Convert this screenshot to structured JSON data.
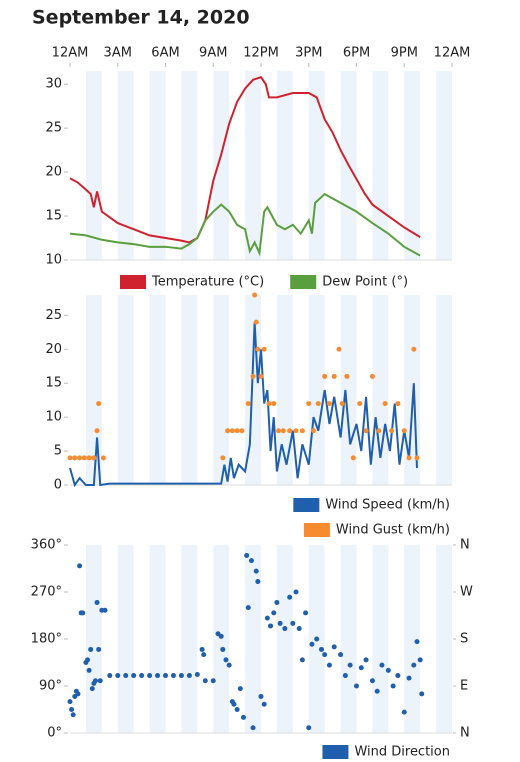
{
  "title": "September 14, 2020",
  "chart_data": [
    {
      "type": "line",
      "xlim": [
        0,
        24
      ],
      "xticks": [
        {
          "value": 0,
          "label": "12AM"
        },
        {
          "value": 3,
          "label": "3AM"
        },
        {
          "value": 6,
          "label": "6AM"
        },
        {
          "value": 9,
          "label": "9AM"
        },
        {
          "value": 12,
          "label": "12PM"
        },
        {
          "value": 15,
          "label": "3PM"
        },
        {
          "value": 18,
          "label": "6PM"
        },
        {
          "value": 21,
          "label": "9PM"
        },
        {
          "value": 24,
          "label": "12AM"
        }
      ],
      "ylim": [
        10,
        31.5
      ],
      "yticks": [
        10,
        15,
        20,
        25,
        30
      ],
      "series": [
        {
          "name": "Temperature (°C)",
          "color": "#d0212e",
          "x": [
            0,
            0.5,
            1,
            1.3,
            1.5,
            1.7,
            2,
            3,
            4,
            5,
            6,
            7,
            7.5,
            8,
            8.5,
            9,
            9.5,
            10,
            10.5,
            11,
            11.5,
            12,
            12.3,
            12.5,
            13,
            14,
            15,
            15.5,
            16,
            16.5,
            17,
            17.5,
            18,
            18.5,
            19,
            20,
            21,
            22
          ],
          "values": [
            19.3,
            18.8,
            18,
            17.5,
            16,
            17.8,
            15.5,
            14.2,
            13.5,
            12.8,
            12.5,
            12.2,
            12,
            12.5,
            14.5,
            19,
            22,
            25.5,
            28,
            29.5,
            30.5,
            30.8,
            30,
            28.5,
            28.5,
            29,
            29,
            28.5,
            26,
            24.5,
            22.5,
            20.8,
            19.2,
            17.6,
            16.3,
            15,
            13.7,
            12.6
          ]
        },
        {
          "name": "Dew Point (°)",
          "color": "#5a9f3f",
          "x": [
            0,
            1,
            2,
            3,
            4,
            5,
            6,
            7,
            7.5,
            8,
            8.5,
            9,
            9.5,
            10,
            10.5,
            11,
            11.3,
            11.6,
            11.9,
            12.2,
            12.4,
            13,
            13.5,
            14,
            14.5,
            15,
            15.2,
            15.4,
            16,
            17,
            18,
            19,
            20,
            21,
            22
          ],
          "values": [
            13,
            12.8,
            12.3,
            12,
            11.8,
            11.5,
            11.5,
            11.3,
            11.8,
            12.5,
            14.5,
            15.5,
            16.3,
            15.5,
            14,
            13.5,
            11,
            12,
            10.8,
            15.5,
            16,
            14,
            13.5,
            14,
            13,
            14.5,
            13,
            16.5,
            17.5,
            16.5,
            15.5,
            14.2,
            13,
            11.5,
            10.5
          ]
        }
      ]
    },
    {
      "type": "line",
      "xlim": [
        0,
        24
      ],
      "ylim": [
        0,
        28
      ],
      "yticks": [
        0,
        5,
        10,
        15,
        20,
        25
      ],
      "series": [
        {
          "name": "Wind Speed (km/h)",
          "color": "#1f5fae",
          "type": "line",
          "x": [
            0,
            0.3,
            0.6,
            1,
            1.5,
            1.7,
            1.9,
            2.5,
            4,
            6,
            8,
            9.5,
            9.7,
            9.9,
            10.1,
            10.3,
            10.6,
            11,
            11.3,
            11.6,
            11.8,
            12,
            12.2,
            12.4,
            12.6,
            12.8,
            13,
            13.3,
            13.6,
            14,
            14.3,
            14.6,
            15,
            15.3,
            15.6,
            16,
            16.3,
            16.6,
            17,
            17.3,
            17.6,
            18,
            18.3,
            18.6,
            18.9,
            19.2,
            19.5,
            19.8,
            20.1,
            20.4,
            20.7,
            21,
            21.3,
            21.6,
            21.8
          ],
          "values": [
            2.5,
            0,
            1,
            0,
            0,
            7,
            0,
            0.2,
            0.2,
            0.2,
            0.2,
            0.2,
            3,
            0.5,
            4,
            1,
            3,
            2,
            6,
            24,
            15,
            20,
            12,
            14,
            5,
            10,
            2,
            6,
            3,
            8,
            1,
            6,
            3,
            10,
            8,
            14,
            9,
            13,
            7,
            14,
            6,
            9,
            5,
            13,
            3,
            10,
            4,
            9,
            5,
            12,
            3,
            8,
            4,
            15,
            2.5
          ]
        },
        {
          "name": "Wind Gust (km/h)",
          "color": "#f78b2f",
          "type": "scatter",
          "x": [
            0,
            0.3,
            0.6,
            0.9,
            1.2,
            1.5,
            1.7,
            1.8,
            2.1,
            9.6,
            9.9,
            10.2,
            10.5,
            10.8,
            11.2,
            11.5,
            11.6,
            11.7,
            11.8,
            12.0,
            12.2,
            12.5,
            12.8,
            13.1,
            13.4,
            13.8,
            14.2,
            14.6,
            15,
            15.3,
            15.6,
            16,
            16.3,
            16.6,
            16.9,
            17.1,
            17.4,
            17.8,
            18.2,
            18.6,
            19,
            19.4,
            19.8,
            20.2,
            20.6,
            21,
            21.3,
            21.6,
            21.8
          ],
          "values": [
            4,
            4,
            4,
            4,
            4,
            4,
            8,
            12,
            4,
            4,
            8,
            8,
            8,
            8,
            12,
            16,
            28,
            24,
            20,
            16,
            20,
            12,
            12,
            8,
            8,
            8,
            8,
            8,
            12,
            8,
            12,
            16,
            12,
            16,
            20,
            12,
            16,
            4,
            12,
            8,
            16,
            8,
            12,
            8,
            12,
            8,
            4,
            20,
            4
          ]
        }
      ]
    },
    {
      "type": "scatter",
      "xlim": [
        0,
        24
      ],
      "ylim": [
        0,
        360
      ],
      "yticks": [
        {
          "value": 0,
          "label": "0°"
        },
        {
          "value": 90,
          "label": "90°"
        },
        {
          "value": 180,
          "label": "180°"
        },
        {
          "value": 270,
          "label": "270°"
        },
        {
          "value": 360,
          "label": "360°"
        }
      ],
      "y2lim": [
        0,
        360
      ],
      "y2ticks": [
        {
          "value": 0,
          "label": "N"
        },
        {
          "value": 90,
          "label": "E"
        },
        {
          "value": 180,
          "label": "S"
        },
        {
          "value": 270,
          "label": "W"
        },
        {
          "value": 360,
          "label": "N"
        }
      ],
      "x": [
        0,
        0.1,
        0.2,
        0.3,
        0.4,
        0.5,
        0.6,
        0.7,
        0.8,
        1.0,
        1.1,
        1.2,
        1.3,
        1.4,
        1.5,
        1.6,
        1.7,
        1.8,
        1.9,
        2.0,
        2.2,
        2.5,
        3,
        3.5,
        4,
        4.5,
        5,
        5.5,
        6,
        6.5,
        7,
        7.5,
        8,
        8.3,
        8.4,
        8.5,
        9,
        9.3,
        9.5,
        9.6,
        9.8,
        10,
        10.2,
        10.3,
        10.5,
        10.7,
        10.9,
        11.1,
        11.2,
        11.4,
        11.5,
        11.7,
        11.8,
        12.0,
        12.2,
        12.4,
        12.6,
        12.8,
        13,
        13.2,
        13.5,
        13.8,
        14,
        14.2,
        14.4,
        14.6,
        14.8,
        15,
        15.2,
        15.5,
        15.8,
        16,
        16.3,
        16.6,
        17,
        17.3,
        17.6,
        18,
        18.3,
        18.6,
        19,
        19.3,
        19.6,
        20,
        20.3,
        20.6,
        21,
        21.3,
        21.6,
        21.8,
        22,
        22.1
      ],
      "series": [
        {
          "name": "Wind Direction",
          "color": "#1f5fae",
          "values": [
            60,
            45,
            35,
            70,
            80,
            75,
            320,
            230,
            230,
            135,
            140,
            120,
            160,
            85,
            95,
            100,
            250,
            160,
            100,
            235,
            235,
            110,
            110,
            110,
            110,
            110,
            110,
            110,
            110,
            110,
            110,
            110,
            112,
            160,
            150,
            100,
            100,
            190,
            185,
            160,
            140,
            130,
            60,
            55,
            45,
            85,
            30,
            340,
            240,
            330,
            10,
            310,
            290,
            70,
            55,
            220,
            205,
            230,
            250,
            210,
            200,
            260,
            210,
            270,
            200,
            140,
            230,
            10,
            170,
            180,
            160,
            150,
            130,
            165,
            150,
            110,
            130,
            90,
            125,
            140,
            100,
            80,
            130,
            120,
            90,
            110,
            40,
            105,
            130,
            175,
            140,
            75
          ]
        }
      ]
    }
  ]
}
